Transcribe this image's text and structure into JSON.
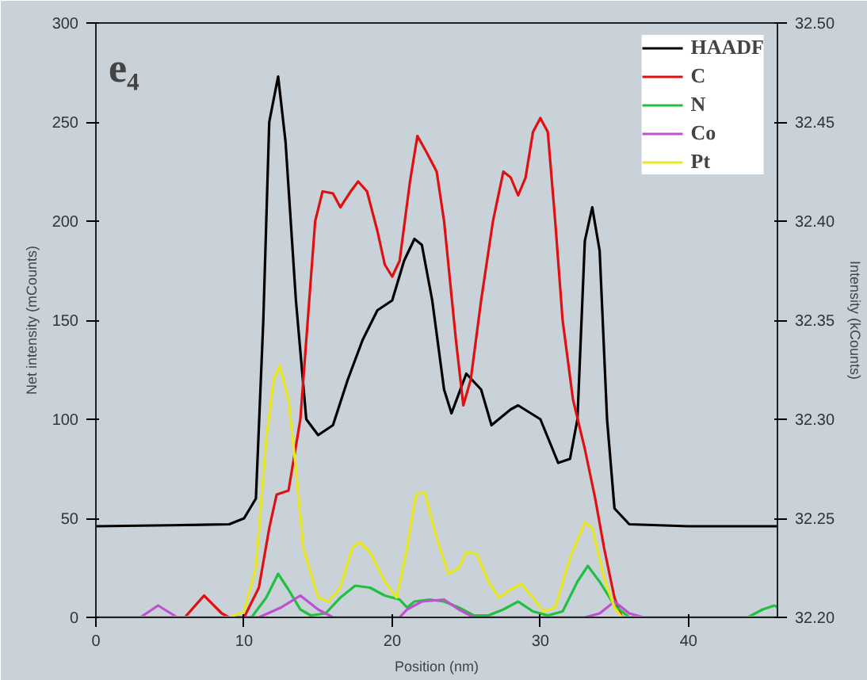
{
  "chart_data": {
    "type": "line",
    "xlabel": "Position (nm)",
    "ylabel": "Net intensity (mCounts)",
    "y2label": "Intensity (kCounts)",
    "annotations": [
      "e₄"
    ],
    "xlim": [
      0,
      46
    ],
    "xticks": [
      0,
      10,
      20,
      30,
      40
    ],
    "ylim": [
      0,
      300
    ],
    "yticks": [
      0,
      50,
      100,
      150,
      200,
      250,
      300
    ],
    "y2lim": [
      32.2,
      32.5
    ],
    "y2ticks": [
      {
        "value": 32.2,
        "label": "32.20"
      },
      {
        "value": 32.25,
        "label": "32.25"
      },
      {
        "value": 32.3,
        "label": "32.30"
      },
      {
        "value": 32.35,
        "label": "32.35"
      },
      {
        "value": 32.4,
        "label": "32.40"
      },
      {
        "value": 32.45,
        "label": "32.45"
      },
      {
        "value": 32.5,
        "label": "32.50"
      }
    ],
    "grid": false,
    "legend": "top right",
    "marker": "none",
    "line_style": "solid",
    "series": [
      {
        "name": "HAADF",
        "color": "#000000",
        "axis": "y2",
        "x": [
          0,
          5,
          9,
          10,
          10.8,
          11.3,
          11.7,
          12.3,
          12.8,
          13.5,
          14.2,
          15,
          16,
          17,
          18,
          19,
          20,
          20.8,
          21.5,
          22,
          22.7,
          23.5,
          24,
          25,
          26,
          26.7,
          28,
          28.5,
          30,
          31.2,
          32,
          32.5,
          33,
          33.5,
          34,
          34.5,
          35,
          36,
          40,
          46
        ],
        "values": [
          32.246,
          32.2465,
          32.247,
          32.25,
          32.26,
          32.35,
          32.45,
          32.473,
          32.44,
          32.36,
          32.3,
          32.292,
          32.297,
          32.32,
          32.34,
          32.355,
          32.36,
          32.38,
          32.391,
          32.388,
          32.36,
          32.315,
          32.303,
          32.323,
          32.315,
          32.297,
          32.305,
          32.307,
          32.3,
          32.278,
          32.28,
          32.3,
          32.39,
          32.407,
          32.385,
          32.3,
          32.255,
          32.247,
          32.246,
          32.246
        ]
      },
      {
        "name": "C",
        "color": "#e01010",
        "x": [
          0,
          6,
          7.3,
          8.5,
          9,
          10,
          11,
          11.7,
          12.2,
          13,
          13.8,
          14.3,
          14.8,
          15.3,
          16,
          16.5,
          17.2,
          17.7,
          18.3,
          19,
          19.5,
          20,
          20.5,
          21.2,
          21.7,
          22.3,
          23,
          23.5,
          24.3,
          24.8,
          25.3,
          26,
          26.8,
          27.5,
          28,
          28.5,
          29,
          29.5,
          30,
          30.5,
          31,
          31.5,
          32.2,
          33,
          33.7,
          34.3,
          35,
          35.5,
          46
        ],
        "values": [
          0,
          0,
          11,
          2,
          0,
          0,
          15,
          45,
          62,
          64,
          100,
          150,
          200,
          215,
          214,
          207,
          215,
          220,
          215,
          195,
          178,
          172,
          180,
          220,
          243,
          235,
          225,
          200,
          140,
          107,
          120,
          160,
          200,
          225,
          222,
          213,
          222,
          245,
          252,
          245,
          200,
          150,
          110,
          85,
          60,
          35,
          10,
          0,
          0
        ]
      },
      {
        "name": "N",
        "color": "#20c040",
        "x": [
          0,
          10.5,
          11.5,
          12.3,
          13,
          13.8,
          14.5,
          15.5,
          16.5,
          17.5,
          18.5,
          19.5,
          20.5,
          21,
          21.5,
          22.5,
          23.5,
          24.5,
          25.5,
          26.5,
          27.5,
          28.5,
          29.5,
          30.5,
          31.5,
          32.5,
          33.2,
          34,
          35,
          36,
          44,
          45,
          45.8,
          46
        ],
        "values": [
          0,
          0,
          10,
          22,
          14,
          4,
          1,
          2,
          10,
          16,
          15,
          11,
          9,
          5,
          8,
          9,
          8,
          5,
          1,
          1,
          4,
          8,
          3,
          1,
          3,
          18,
          26,
          18,
          6,
          0,
          0,
          4,
          6,
          5
        ]
      },
      {
        "name": "Co",
        "color": "#c050d0",
        "x": [
          0,
          3,
          4.2,
          5.5,
          11,
          12.5,
          13.8,
          15,
          16,
          20.5,
          21,
          22,
          23.5,
          24.5,
          25.5,
          33,
          34,
          35,
          36,
          37,
          46
        ],
        "values": [
          0,
          0,
          6,
          0,
          0,
          5,
          11,
          4,
          0,
          0,
          4,
          8,
          9,
          4,
          0,
          0,
          2,
          8,
          2,
          0,
          0
        ]
      },
      {
        "name": "Pt",
        "color": "#e8e820",
        "x": [
          0,
          9,
          10,
          10.8,
          11.5,
          12,
          12.4,
          13,
          13.5,
          14,
          15,
          15.7,
          16.5,
          17.3,
          17.8,
          18.5,
          19.5,
          20.3,
          21,
          21.6,
          22.2,
          23,
          23.8,
          24.5,
          25,
          25.7,
          26.5,
          27.2,
          28,
          28.7,
          29.5,
          30.2,
          31,
          32,
          33,
          33.5,
          34.3,
          35,
          35.5,
          46
        ],
        "values": [
          0,
          0,
          3,
          25,
          90,
          120,
          127,
          110,
          75,
          35,
          10,
          8,
          15,
          35,
          38,
          33,
          18,
          10,
          35,
          62,
          63,
          40,
          22,
          25,
          33,
          32,
          18,
          10,
          14,
          17,
          10,
          3,
          5,
          30,
          48,
          45,
          20,
          5,
          0,
          0
        ]
      }
    ]
  }
}
